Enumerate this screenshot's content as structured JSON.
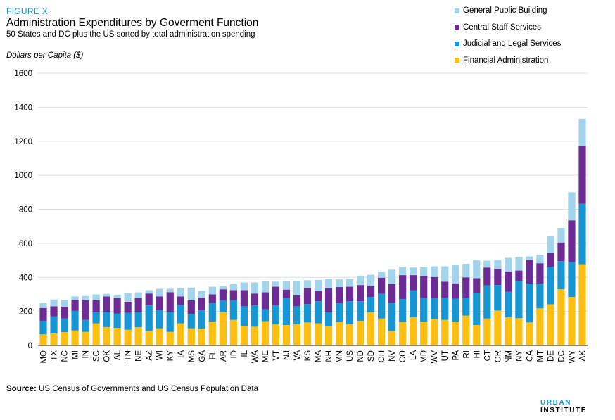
{
  "header": {
    "figure_label": "FIGURE X",
    "title": "Administration Expenditures by Goverment Function",
    "subtitle": "50 States and DC plus the US sorted by total administration spending",
    "ylabel": "Dollars per Capita ($)"
  },
  "legend": [
    {
      "name": "General Public Building",
      "color": "#a2d4ec"
    },
    {
      "name": "Central Staff Services",
      "color": "#6d2b96"
    },
    {
      "name": "Judicial and Legal Services",
      "color": "#1696d2"
    },
    {
      "name": "Financial Administration",
      "color": "#fdbf11"
    }
  ],
  "footer": {
    "source_label": "Source:",
    "source_text": " US Census of Governments and US Census Population Data",
    "brand_part1": "URBAN",
    "brand_part2": " INSTITUTE"
  },
  "chart_data": {
    "type": "bar",
    "stacked": true,
    "ylim": [
      0,
      1600
    ],
    "yticks": [
      0,
      200,
      400,
      600,
      800,
      1000,
      1200,
      1400,
      1600
    ],
    "grid": "horizontal",
    "legend_position": "top-right",
    "categories": [
      "MO",
      "TX",
      "NC",
      "MI",
      "IN",
      "SC",
      "OK",
      "AL",
      "TN",
      "NE",
      "AZ",
      "WI",
      "KY",
      "IA",
      "MS",
      "GA",
      "FL",
      "AR",
      "ID",
      "IL",
      "WA",
      "ME",
      "VT",
      "NJ",
      "VA",
      "KS",
      "MA",
      "NH",
      "MN",
      "US",
      "ND",
      "SD",
      "OH",
      "NV",
      "CO",
      "LA",
      "MD",
      "WV",
      "UT",
      "PA",
      "RI",
      "HI",
      "CT",
      "OR",
      "NM",
      "NY",
      "CA",
      "MT",
      "DE",
      "DC",
      "WY",
      "AK"
    ],
    "series": [
      {
        "name": "Financial Administration",
        "color": "#fdbf11",
        "values": [
          65,
          70,
          78,
          88,
          80,
          130,
          108,
          103,
          92,
          107,
          85,
          100,
          80,
          130,
          100,
          98,
          140,
          195,
          150,
          115,
          110,
          142,
          125,
          120,
          125,
          135,
          130,
          112,
          138,
          125,
          145,
          195,
          158,
          85,
          138,
          165,
          140,
          155,
          150,
          140,
          175,
          120,
          158,
          205,
          165,
          160,
          135,
          218,
          242,
          330,
          285,
          477
        ]
      },
      {
        "name": "Judicial and Legal Services",
        "color": "#1696d2",
        "values": [
          80,
          100,
          80,
          115,
          70,
          65,
          90,
          85,
          100,
          90,
          150,
          108,
          118,
          108,
          85,
          108,
          110,
          70,
          115,
          115,
          125,
          70,
          110,
          158,
          105,
          108,
          130,
          85,
          110,
          135,
          115,
          90,
          145,
          165,
          135,
          158,
          138,
          122,
          130,
          135,
          105,
          190,
          195,
          150,
          150,
          220,
          228,
          145,
          220,
          165,
          205,
          355
        ]
      },
      {
        "name": "Central Staff Services",
        "color": "#6d2b96",
        "values": [
          75,
          60,
          70,
          65,
          115,
          70,
          90,
          90,
          65,
          80,
          70,
          80,
          115,
          50,
          80,
          75,
          50,
          65,
          60,
          95,
          70,
          100,
          110,
          50,
          65,
          95,
          60,
          140,
          95,
          85,
          95,
          65,
          95,
          110,
          140,
          90,
          130,
          125,
          95,
          90,
          120,
          85,
          105,
          95,
          120,
          60,
          140,
          120,
          80,
          110,
          245,
          340
        ]
      },
      {
        "name": "General Public Building",
        "color": "#a2d4ec",
        "values": [
          30,
          40,
          40,
          20,
          25,
          35,
          15,
          20,
          50,
          35,
          20,
          45,
          20,
          50,
          75,
          40,
          45,
          20,
          35,
          45,
          65,
          65,
          30,
          50,
          85,
          45,
          65,
          55,
          45,
          45,
          55,
          65,
          35,
          85,
          50,
          45,
          55,
          63,
          90,
          110,
          80,
          105,
          40,
          50,
          80,
          80,
          20,
          50,
          100,
          85,
          165,
          160
        ]
      }
    ]
  }
}
